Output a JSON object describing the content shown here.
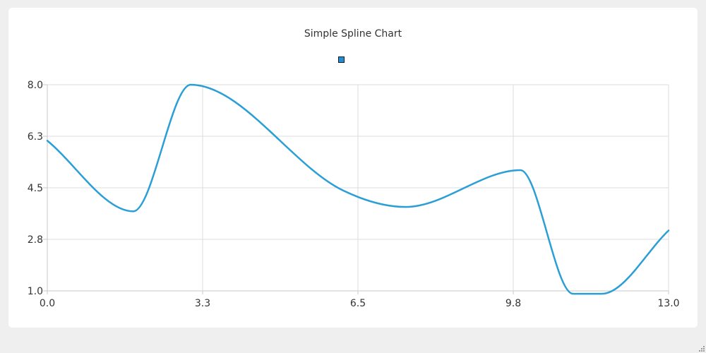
{
  "chart_data": {
    "type": "line",
    "subtype": "spline",
    "title": "Simple Spline Chart",
    "legend": {
      "placement": "top-center",
      "marker_color": "#1e90d6"
    },
    "xlim": [
      0,
      13
    ],
    "ylim": [
      1,
      8
    ],
    "x_ticks": [
      "0.0",
      "3.3",
      "6.5",
      "9.8",
      "13.0"
    ],
    "y_ticks": [
      "1.0",
      "2.8",
      "4.5",
      "6.3",
      "8.0"
    ],
    "grid": true,
    "series": [
      {
        "color": "#2a9fd6",
        "x": [
          0,
          1.8,
          3.0,
          6.2,
          7.5,
          9.9,
          11.0,
          11.6,
          13.0
        ],
        "y": [
          6.1,
          3.7,
          8.0,
          4.4,
          3.85,
          5.1,
          0.9,
          0.9,
          3.05
        ]
      }
    ]
  }
}
